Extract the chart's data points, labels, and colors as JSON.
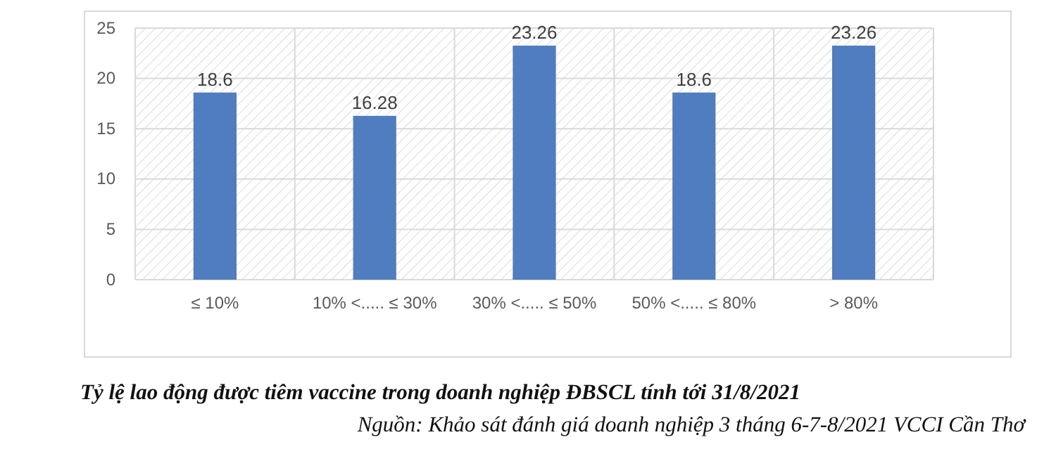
{
  "chart_data": {
    "type": "bar",
    "title": "Tỷ lệ lao động được tiêm vaccine trong doanh nghiệp ĐBSCL tính tới 31/8/2021",
    "annotations": [
      "Nguồn: Khảo sát đánh giá doanh nghiệp 3 tháng 6-7-8/2021 VCCI Cần Thơ"
    ],
    "categories": [
      "≤ 10%",
      "10%  <..... ≤ 30%",
      "30%  <..... ≤ 50%",
      "50%  <..... ≤ 80%",
      "> 80%"
    ],
    "values": [
      18.6,
      16.28,
      23.26,
      18.6,
      23.26
    ],
    "color": "#4f7dbf",
    "ylim": [
      0,
      25
    ],
    "yticks": [
      0,
      5,
      10,
      15,
      20,
      25
    ],
    "grid": true,
    "data_labels": true
  }
}
